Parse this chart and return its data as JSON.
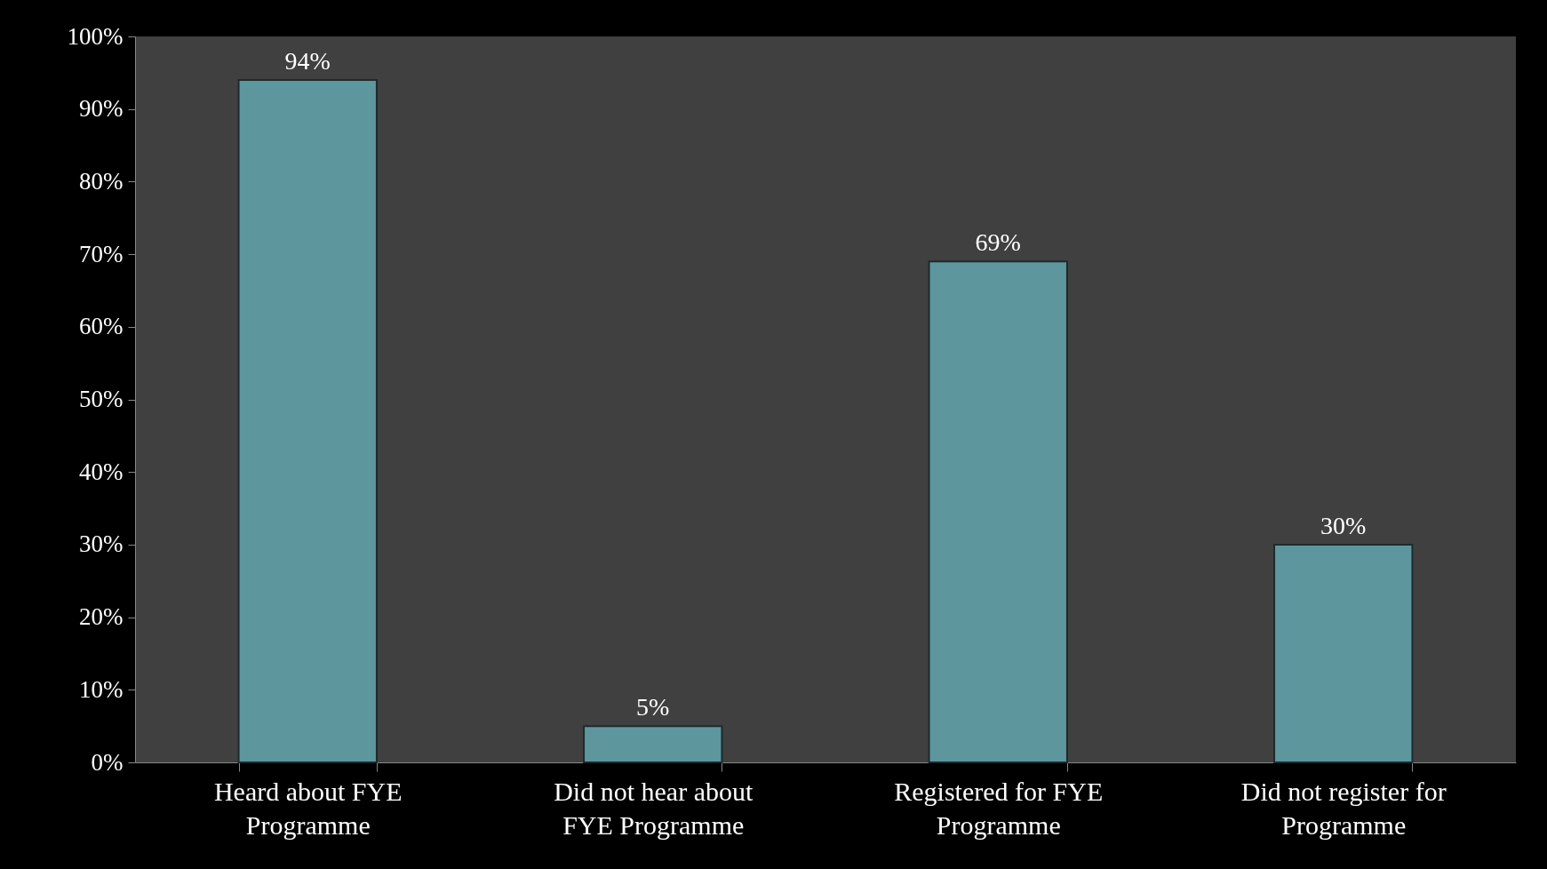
{
  "chart_data": {
    "type": "bar",
    "categories": [
      "Heard about FYE Programme",
      "Did not hear about FYE Programme",
      "Registered for FYE Programme",
      "Did not register for Programme"
    ],
    "values": [
      94,
      5,
      69,
      30
    ],
    "value_labels": [
      "94%",
      "5%",
      "69%",
      "30%"
    ],
    "color": "#5e969e",
    "ylim": [
      0,
      100
    ],
    "yticks": [
      {
        "value": 0,
        "label": "0%"
      },
      {
        "value": 10,
        "label": "10%"
      },
      {
        "value": 20,
        "label": "20%"
      },
      {
        "value": 30,
        "label": "30%"
      },
      {
        "value": 40,
        "label": "40%"
      },
      {
        "value": 50,
        "label": "50%"
      },
      {
        "value": 60,
        "label": "60%"
      },
      {
        "value": 70,
        "label": "70%"
      },
      {
        "value": 80,
        "label": "80%"
      },
      {
        "value": 90,
        "label": "90%"
      },
      {
        "value": 100,
        "label": "100%"
      }
    ],
    "grid": false
  }
}
